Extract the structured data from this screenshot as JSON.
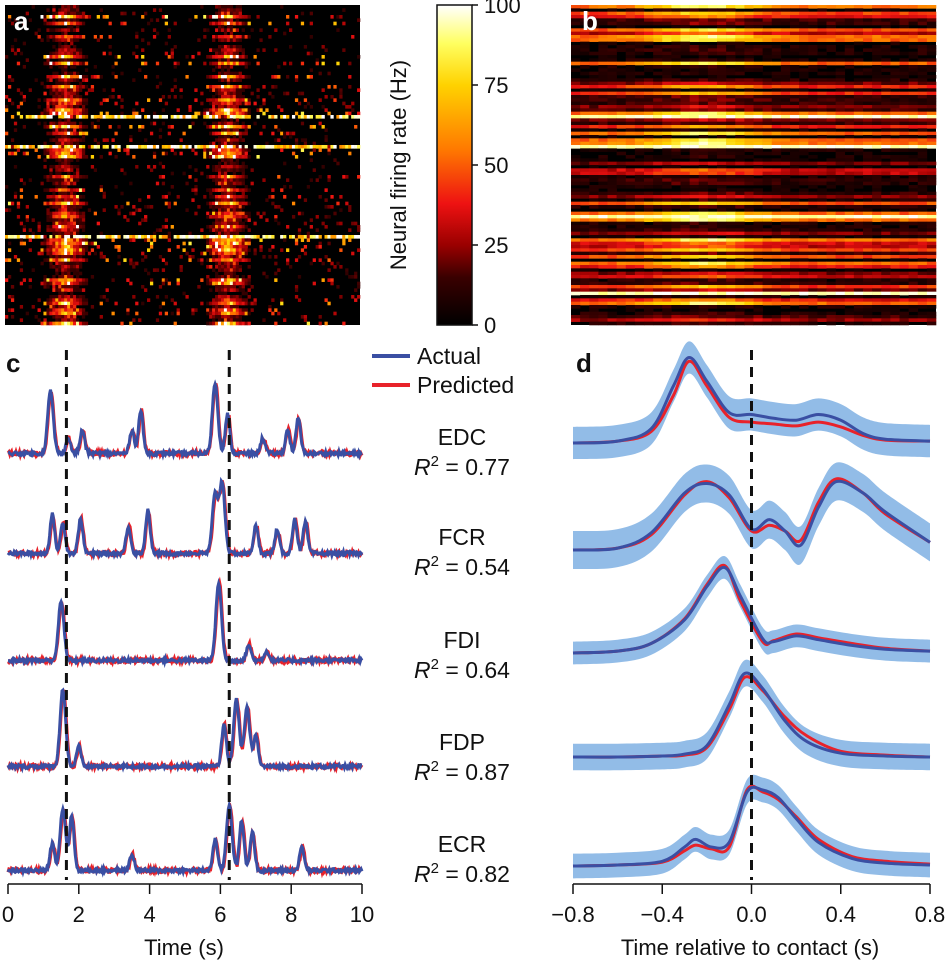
{
  "panel_labels": {
    "a": "a",
    "b": "b",
    "c": "c",
    "d": "d"
  },
  "colorbar": {
    "label": "Neural firing rate (Hz)",
    "ticks": [
      "0",
      "25",
      "50",
      "75",
      "100"
    ],
    "tick_values": [
      0,
      25,
      50,
      75,
      100
    ],
    "range": [
      0,
      100
    ]
  },
  "legend": {
    "actual": "Actual",
    "predicted": "Predicted"
  },
  "colors": {
    "actual": "#3a4fa3",
    "predicted": "#e8222a",
    "band": "#7fb0e3",
    "dashed": "#111111"
  },
  "muscles": [
    {
      "name": "EDC",
      "r2_prefix": "R",
      "r2_sup": "2",
      "r2_value": " = 0.77"
    },
    {
      "name": "FCR",
      "r2_prefix": "R",
      "r2_sup": "2",
      "r2_value": " = 0.54"
    },
    {
      "name": "FDI",
      "r2_prefix": "R",
      "r2_sup": "2",
      "r2_value": " = 0.64"
    },
    {
      "name": "FDP",
      "r2_prefix": "R",
      "r2_sup": "2",
      "r2_value": " = 0.87"
    },
    {
      "name": "ECR",
      "r2_prefix": "R",
      "r2_sup": "2",
      "r2_value": " = 0.82"
    }
  ],
  "axis_c": {
    "xlabel": "Time (s)",
    "ticks": [
      "0",
      "2",
      "4",
      "6",
      "8",
      "10"
    ],
    "tick_values": [
      0,
      2,
      4,
      6,
      8,
      10
    ],
    "xlim": [
      0,
      10
    ],
    "dashed_x": [
      1.65,
      6.25
    ]
  },
  "axis_d": {
    "xlabel": "Time relative to contact (s)",
    "ticks": [
      "−0.8",
      "−0.4",
      "0.0",
      "0.4",
      "0.8"
    ],
    "tick_values": [
      -0.8,
      -0.4,
      0.0,
      0.4,
      0.8
    ],
    "xlim": [
      -0.8,
      0.8
    ],
    "dashed_x": [
      0.0
    ]
  },
  "chart_data": [
    {
      "type": "heatmap",
      "panel": "a",
      "description_units": "rows = neurons, columns = time bins, value = firing rate (Hz)",
      "colorscale_range": [
        0,
        100
      ],
      "hot_columns_time_s": [
        1.65,
        6.25
      ],
      "saturated_rows": [
        42,
        33,
        69
      ]
    },
    {
      "type": "heatmap",
      "panel": "b",
      "description_units": "rows = neurons, columns = time relative to contact, value = mean firing rate (Hz)",
      "colorscale_range": [
        0,
        100
      ],
      "saturated_rows": [
        42,
        33,
        63,
        86
      ]
    },
    {
      "type": "line",
      "panel": "c",
      "xlabel": "Time (s)",
      "xlim": [
        0,
        10
      ],
      "series": [
        {
          "name": "Actual"
        },
        {
          "name": "Predicted"
        }
      ],
      "traces": [
        {
          "muscle": "EDC",
          "r2": 0.77,
          "bursts": [
            [
              1.2,
              0.8
            ],
            [
              1.7,
              0.2
            ],
            [
              2.1,
              0.3
            ],
            [
              3.5,
              0.3
            ],
            [
              3.75,
              0.55
            ],
            [
              5.85,
              0.9
            ],
            [
              6.2,
              0.5
            ],
            [
              7.2,
              0.2
            ],
            [
              7.9,
              0.3
            ],
            [
              8.2,
              0.45
            ]
          ]
        },
        {
          "muscle": "FCR",
          "r2": 0.54,
          "bursts": [
            [
              1.25,
              0.5
            ],
            [
              1.55,
              0.4
            ],
            [
              2.05,
              0.45
            ],
            [
              3.4,
              0.35
            ],
            [
              3.95,
              0.55
            ],
            [
              5.85,
              0.75
            ],
            [
              6.05,
              0.9
            ],
            [
              7.0,
              0.35
            ],
            [
              7.6,
              0.3
            ],
            [
              8.1,
              0.45
            ],
            [
              8.4,
              0.4
            ]
          ]
        },
        {
          "muscle": "FDI",
          "r2": 0.64,
          "bursts": [
            [
              1.5,
              0.75
            ],
            [
              5.95,
              1.0
            ],
            [
              6.8,
              0.2
            ],
            [
              7.3,
              0.12
            ]
          ]
        },
        {
          "muscle": "FDP",
          "r2": 0.87,
          "bursts": [
            [
              1.55,
              1.0
            ],
            [
              2.0,
              0.25
            ],
            [
              6.1,
              0.55
            ],
            [
              6.45,
              0.85
            ],
            [
              6.75,
              0.75
            ],
            [
              7.0,
              0.4
            ]
          ]
        },
        {
          "muscle": "ECR",
          "r2": 0.82,
          "bursts": [
            [
              1.25,
              0.35
            ],
            [
              1.55,
              0.8
            ],
            [
              1.8,
              0.7
            ],
            [
              3.5,
              0.2
            ],
            [
              5.85,
              0.4
            ],
            [
              6.25,
              0.85
            ],
            [
              6.6,
              0.65
            ],
            [
              6.9,
              0.5
            ],
            [
              8.3,
              0.3
            ]
          ]
        }
      ]
    },
    {
      "type": "line",
      "panel": "d",
      "xlabel": "Time relative to contact (s)",
      "xlim": [
        -0.8,
        0.8
      ],
      "series": [
        {
          "name": "Actual"
        },
        {
          "name": "Predicted"
        }
      ],
      "traces": [
        {
          "muscle": "EDC",
          "x": [
            -0.8,
            -0.6,
            -0.45,
            -0.35,
            -0.28,
            -0.2,
            -0.1,
            0.0,
            0.1,
            0.2,
            0.3,
            0.4,
            0.5,
            0.6,
            0.8
          ],
          "actual": [
            0.0,
            0.02,
            0.15,
            0.6,
            0.9,
            0.65,
            0.32,
            0.3,
            0.26,
            0.24,
            0.3,
            0.24,
            0.1,
            0.04,
            0.02
          ],
          "predicted": [
            0.0,
            0.02,
            0.12,
            0.5,
            0.86,
            0.6,
            0.27,
            0.22,
            0.2,
            0.18,
            0.22,
            0.17,
            0.08,
            0.03,
            0.02
          ],
          "band": 0.17
        },
        {
          "muscle": "FCR",
          "x": [
            -0.8,
            -0.6,
            -0.45,
            -0.3,
            -0.2,
            -0.1,
            0.0,
            0.08,
            0.15,
            0.22,
            0.3,
            0.38,
            0.5,
            0.6,
            0.8
          ],
          "actual": [
            0.0,
            0.02,
            0.18,
            0.6,
            0.7,
            0.58,
            0.22,
            0.32,
            0.2,
            0.05,
            0.45,
            0.72,
            0.6,
            0.4,
            0.08
          ],
          "predicted": [
            0.0,
            0.02,
            0.16,
            0.58,
            0.72,
            0.55,
            0.2,
            0.26,
            0.2,
            0.1,
            0.5,
            0.75,
            0.6,
            0.38,
            0.08
          ],
          "band": 0.2
        },
        {
          "muscle": "FDI",
          "x": [
            -0.8,
            -0.6,
            -0.45,
            -0.3,
            -0.2,
            -0.12,
            -0.05,
            0.05,
            0.1,
            0.2,
            0.3,
            0.45,
            0.6,
            0.8
          ],
          "actual": [
            0.0,
            0.02,
            0.1,
            0.35,
            0.7,
            0.9,
            0.6,
            0.15,
            0.12,
            0.18,
            0.14,
            0.08,
            0.04,
            0.02
          ],
          "predicted": [
            0.0,
            0.02,
            0.1,
            0.36,
            0.72,
            0.92,
            0.55,
            0.12,
            0.13,
            0.2,
            0.16,
            0.1,
            0.05,
            0.02
          ],
          "band": 0.12
        },
        {
          "muscle": "FDP",
          "x": [
            -0.8,
            -0.6,
            -0.4,
            -0.3,
            -0.2,
            -0.1,
            -0.03,
            0.05,
            0.15,
            0.25,
            0.4,
            0.6,
            0.8
          ],
          "actual": [
            0.0,
            0.0,
            0.01,
            0.03,
            0.12,
            0.55,
            0.88,
            0.72,
            0.38,
            0.16,
            0.04,
            0.01,
            0.0
          ],
          "predicted": [
            0.0,
            0.0,
            0.01,
            0.02,
            0.1,
            0.5,
            0.84,
            0.7,
            0.42,
            0.22,
            0.06,
            0.02,
            0.0
          ],
          "band": 0.14
        },
        {
          "muscle": "ECR",
          "x": [
            -0.8,
            -0.6,
            -0.4,
            -0.3,
            -0.25,
            -0.18,
            -0.1,
            -0.02,
            0.05,
            0.12,
            0.2,
            0.3,
            0.45,
            0.6,
            0.8
          ],
          "actual": [
            0.0,
            0.01,
            0.05,
            0.2,
            0.28,
            0.2,
            0.25,
            0.78,
            0.8,
            0.72,
            0.5,
            0.25,
            0.08,
            0.03,
            0.01
          ],
          "predicted": [
            0.0,
            0.01,
            0.04,
            0.16,
            0.22,
            0.18,
            0.2,
            0.8,
            0.78,
            0.7,
            0.52,
            0.28,
            0.1,
            0.05,
            0.02
          ],
          "band": 0.13
        }
      ]
    }
  ]
}
